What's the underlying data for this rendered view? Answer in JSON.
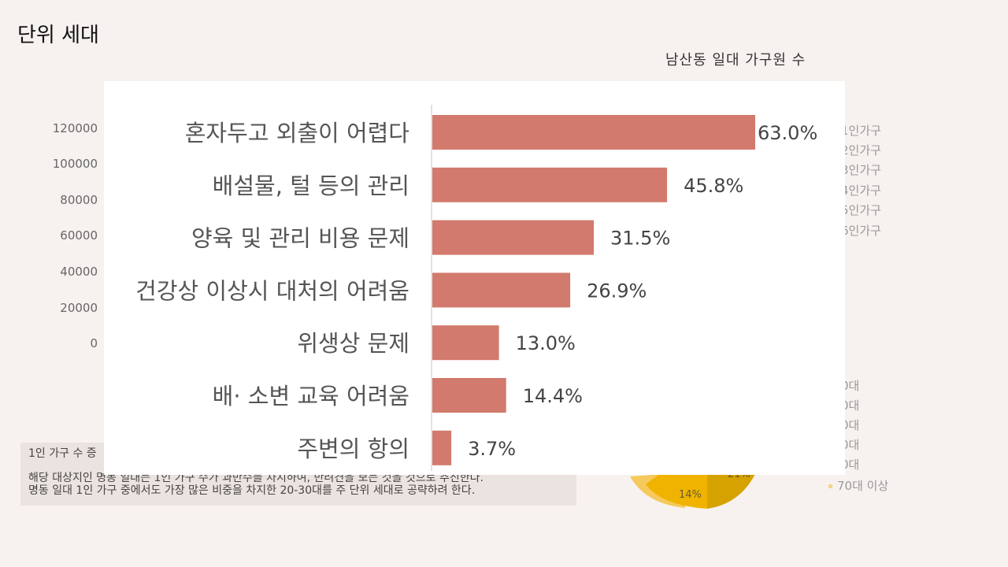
{
  "page": {
    "title": "단위 세대",
    "background_chart_title": "남산동 일대 가구원 수",
    "background_y_ticks": [
      "120000",
      "100000",
      "80000",
      "60000",
      "40000",
      "20000",
      "0"
    ],
    "household_legend": [
      "1인가구",
      "2인가구",
      "3인가구",
      "4인가구",
      "5인가구",
      "6인가구"
    ],
    "age_legend": [
      "0대",
      "0대",
      "0대",
      "0대",
      "0대",
      "70대 이상"
    ],
    "pie_labels": [
      "14%",
      "21%"
    ],
    "text_box": {
      "line1": "1인 가구 수 증",
      "line2": "해당 대상지인 명동 일대는 1인 가구 수가 과반수를 차지하여, 반려견을 보는 것을 것으로 추진한다.",
      "line3": "명동 일대 1인 가구 중에서도 가장 많은 비중을 차지한 20-30대를 주 단위 세대로 공략하려 한다."
    }
  },
  "chart_data": {
    "type": "bar",
    "orientation": "horizontal",
    "categories": [
      "혼자두고 외출이 어렵다",
      "배설물, 털 등의 관리",
      "양육 및 관리 비용 문제",
      "건강상 이상시 대처의 어려움",
      "위생상 문제",
      "배· 소변 교육 어려움",
      "주변의 항의"
    ],
    "values": [
      63.0,
      45.8,
      31.5,
      26.9,
      13.0,
      14.4,
      3.7
    ],
    "value_labels": [
      "63.0%",
      "45.8%",
      "31.5%",
      "26.9%",
      "13.0%",
      "14.4%",
      "3.7%"
    ],
    "xlim": [
      0,
      70
    ],
    "bar_color": "#d27a6d",
    "grid": false
  }
}
